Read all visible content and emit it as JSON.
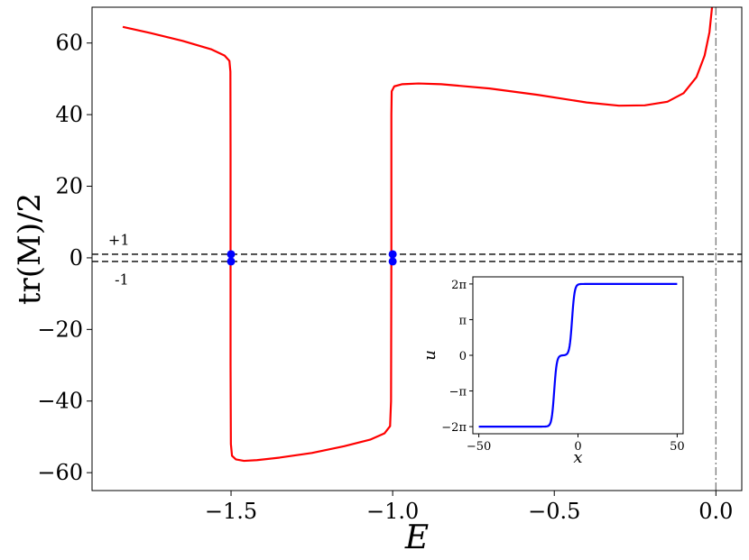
{
  "chart_data": [
    {
      "type": "line",
      "xlabel": "E",
      "ylabel": "tr(M)/2",
      "xlim": [
        -1.93,
        0.08
      ],
      "ylim": [
        -65,
        70
      ],
      "x_ticks": [
        -1.5,
        -1.0,
        -0.5,
        0.0
      ],
      "x_tick_labels": [
        "−1.5",
        "−1.0",
        "−0.5",
        "0.0"
      ],
      "y_ticks": [
        -60,
        -40,
        -20,
        0,
        20,
        40,
        60
      ],
      "y_tick_labels": [
        "−60",
        "−40",
        "−20",
        "0",
        "20",
        "40",
        "60"
      ],
      "grid": false,
      "series": [
        {
          "color": "#ff0000",
          "segments": [
            [
              [
                -1.835,
                64.5
              ],
              [
                -1.75,
                62.8
              ],
              [
                -1.65,
                60.6
              ],
              [
                -1.56,
                58.2
              ],
              [
                -1.52,
                56.5
              ],
              [
                -1.505,
                55.0
              ],
              [
                -1.502,
                52
              ],
              [
                -1.5015,
                30
              ],
              [
                -1.5015,
                -30
              ],
              [
                -1.5005,
                -52
              ],
              [
                -1.497,
                -55.3
              ],
              [
                -1.485,
                -56.3
              ],
              [
                -1.46,
                -56.7
              ],
              [
                -1.42,
                -56.5
              ],
              [
                -1.35,
                -55.8
              ],
              [
                -1.25,
                -54.5
              ],
              [
                -1.15,
                -52.6
              ],
              [
                -1.07,
                -50.8
              ],
              [
                -1.025,
                -49.0
              ],
              [
                -1.008,
                -47.0
              ],
              [
                -1.005,
                -40
              ],
              [
                -1.004,
                0
              ],
              [
                -1.004,
                40
              ],
              [
                -1.003,
                46.5
              ],
              [
                -0.995,
                47.9
              ],
              [
                -0.97,
                48.5
              ],
              [
                -0.92,
                48.7
              ],
              [
                -0.85,
                48.5
              ],
              [
                -0.7,
                47.3
              ],
              [
                -0.55,
                45.5
              ],
              [
                -0.4,
                43.4
              ],
              [
                -0.3,
                42.5
              ],
              [
                -0.22,
                42.6
              ],
              [
                -0.15,
                43.6
              ],
              [
                -0.1,
                46.0
              ],
              [
                -0.06,
                50.5
              ],
              [
                -0.035,
                56.5
              ],
              [
                -0.02,
                63
              ],
              [
                -0.012,
                70
              ]
            ]
          ]
        }
      ],
      "reference_lines": [
        {
          "orientation": "horizontal",
          "y": 1,
          "style": "dashed",
          "color": "#000000"
        },
        {
          "orientation": "horizontal",
          "y": -1,
          "style": "dashed",
          "color": "#000000"
        },
        {
          "orientation": "vertical",
          "x": 0,
          "style": "dashdot",
          "color": "#808080"
        }
      ],
      "markers": {
        "color": "#0000ff",
        "points": [
          [
            -1.5,
            1
          ],
          [
            -1.5,
            -1
          ],
          [
            -1.0,
            1
          ],
          [
            -1.0,
            -1
          ]
        ]
      },
      "annotations": [
        {
          "text": "+1",
          "x": -1.88,
          "y": 3.6
        },
        {
          "text": "-1",
          "x": -1.86,
          "y": -7.5
        }
      ]
    },
    {
      "type": "line",
      "role": "inset",
      "xlabel": "x",
      "ylabel": "u",
      "xlim": [
        -53,
        53
      ],
      "ylim_over_pi": [
        -2.2,
        2.2
      ],
      "x_ticks": [
        -50,
        0,
        50
      ],
      "x_tick_labels": [
        "−50",
        "0",
        "50"
      ],
      "y_ticks_over_pi": [
        -2,
        -1,
        0,
        1,
        2
      ],
      "y_tick_labels": [
        "−2π",
        "−π",
        "0",
        "π",
        "2π"
      ],
      "series": [
        {
          "color": "#0000ff",
          "y_over_pi": true,
          "kinks": [
            [
              -50,
              -2
            ],
            [
              -15,
              -2
            ],
            [
              -9,
              0
            ],
            [
              -6,
              0
            ],
            [
              0,
              2
            ],
            [
              50,
              2
            ]
          ],
          "steps": [
            {
              "center": -12,
              "width": 1.3,
              "from": -2,
              "to": 0
            },
            {
              "center": -3,
              "width": 1.3,
              "from": 0,
              "to": 2
            }
          ]
        }
      ]
    }
  ]
}
